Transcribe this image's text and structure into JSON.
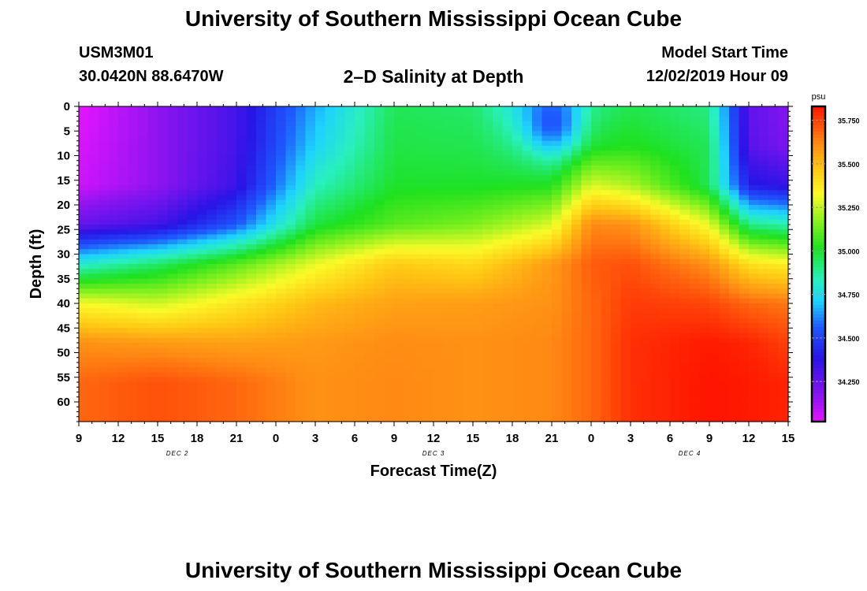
{
  "header": {
    "title": "University of Southern Mississippi Ocean Cube",
    "station_id": "USM3M01",
    "location": "30.0420N 88.6470W",
    "chart_title": "2–D Salinity at Depth",
    "model_label": "Model Start Time",
    "model_time": "12/02/2019 Hour 09"
  },
  "footer": {
    "title": "University of Southern Mississippi Ocean Cube"
  },
  "chart_data": {
    "type": "heatmap",
    "title": "2–D Salinity at Depth",
    "xlabel": "Forecast Time(Z)",
    "ylabel": "Depth (ft)",
    "x_hours_range": [
      0,
      54
    ],
    "x_ticks": [
      {
        "h": 0,
        "label": "9"
      },
      {
        "h": 3,
        "label": "12"
      },
      {
        "h": 6,
        "label": "15"
      },
      {
        "h": 9,
        "label": "18"
      },
      {
        "h": 12,
        "label": "21"
      },
      {
        "h": 15,
        "label": "0"
      },
      {
        "h": 18,
        "label": "3"
      },
      {
        "h": 21,
        "label": "6"
      },
      {
        "h": 24,
        "label": "9"
      },
      {
        "h": 27,
        "label": "12"
      },
      {
        "h": 30,
        "label": "15"
      },
      {
        "h": 33,
        "label": "18"
      },
      {
        "h": 36,
        "label": "21"
      },
      {
        "h": 39,
        "label": "0"
      },
      {
        "h": 42,
        "label": "3"
      },
      {
        "h": 45,
        "label": "6"
      },
      {
        "h": 48,
        "label": "9"
      },
      {
        "h": 51,
        "label": "12"
      },
      {
        "h": 54,
        "label": "15"
      }
    ],
    "date_labels": [
      {
        "h": 7.5,
        "label": "DEC 2"
      },
      {
        "h": 27,
        "label": "DEC 3"
      },
      {
        "h": 46.5,
        "label": "DEC 4"
      }
    ],
    "y_range": [
      0,
      64
    ],
    "y_ticks": [
      0,
      5,
      10,
      15,
      20,
      25,
      30,
      35,
      40,
      45,
      50,
      55,
      60
    ],
    "colorbar": {
      "unit": "psu",
      "range": [
        34.02,
        35.83
      ],
      "tick_values": [
        34.25,
        34.5,
        34.75,
        35.0,
        35.25,
        35.5,
        35.75
      ],
      "tick_labels": [
        "34.250",
        "34.500",
        "34.750",
        "35.000",
        "35.250",
        "35.500",
        "35.750"
      ]
    },
    "depths": [
      0,
      8,
      16,
      24,
      32,
      40,
      48,
      56,
      64
    ],
    "times": [
      0,
      6,
      12,
      18,
      24,
      30,
      36,
      39,
      42,
      48,
      51,
      54
    ],
    "salinity": [
      [
        34.02,
        34.16,
        34.32,
        34.66,
        34.95,
        34.93,
        34.65,
        34.9,
        34.96,
        34.9,
        34.26,
        34.18
      ],
      [
        34.04,
        34.16,
        34.32,
        34.72,
        34.97,
        34.96,
        34.85,
        35.0,
        35.02,
        34.95,
        34.28,
        34.2
      ],
      [
        34.06,
        34.16,
        34.34,
        34.83,
        35.0,
        35.0,
        35.02,
        35.28,
        35.22,
        34.95,
        34.4,
        34.35
      ],
      [
        34.25,
        34.32,
        34.55,
        34.98,
        35.1,
        35.15,
        35.28,
        35.62,
        35.6,
        35.3,
        34.9,
        34.85
      ],
      [
        34.8,
        34.93,
        35.1,
        35.3,
        35.46,
        35.42,
        35.58,
        35.7,
        35.72,
        35.6,
        35.4,
        35.35
      ],
      [
        35.32,
        35.26,
        35.38,
        35.5,
        35.56,
        35.57,
        35.6,
        35.68,
        35.76,
        35.74,
        35.68,
        35.65
      ],
      [
        35.6,
        35.58,
        35.56,
        35.58,
        35.61,
        35.6,
        35.62,
        35.68,
        35.78,
        35.82,
        35.8,
        35.75
      ],
      [
        35.68,
        35.72,
        35.68,
        35.6,
        35.62,
        35.6,
        35.62,
        35.68,
        35.78,
        35.83,
        35.82,
        35.8
      ],
      [
        35.68,
        35.72,
        35.68,
        35.6,
        35.62,
        35.6,
        35.62,
        35.68,
        35.78,
        35.83,
        35.82,
        35.8
      ]
    ],
    "anomalies": [
      {
        "time": 36,
        "depth": 3,
        "value": 34.55,
        "dt": 2.0,
        "dd": 6
      }
    ]
  }
}
